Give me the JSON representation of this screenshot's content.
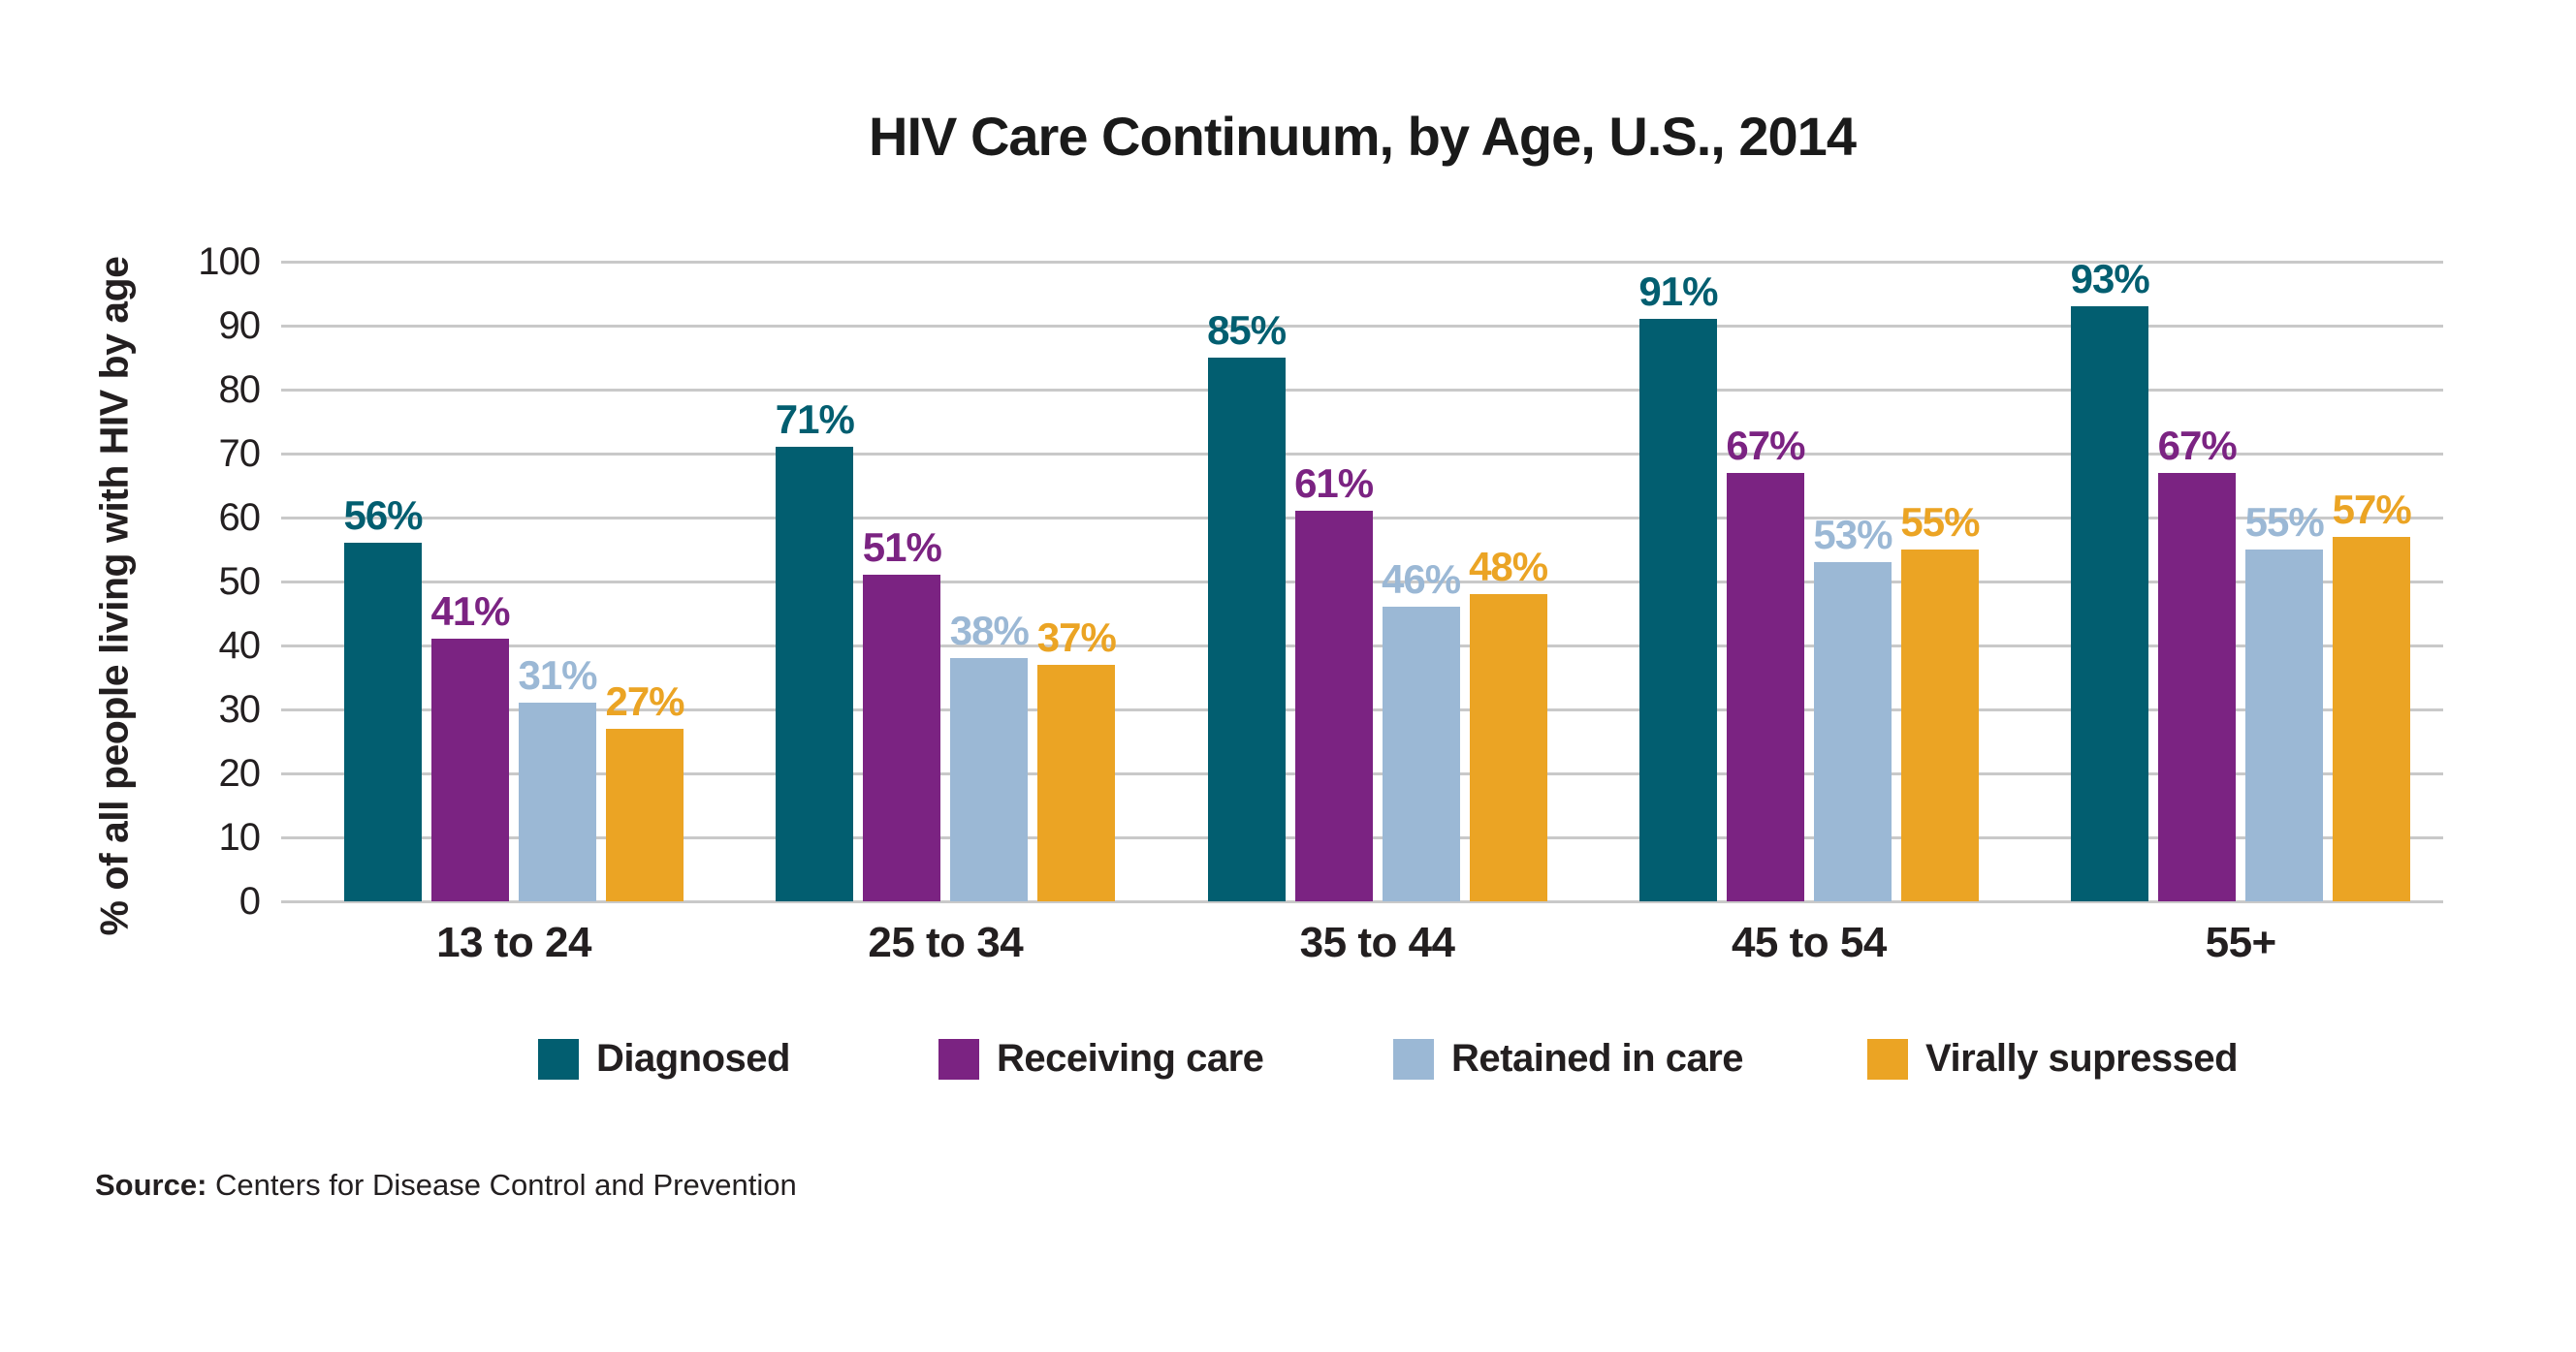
{
  "title": "HIV Care Continuum, by Age, U.S., 2014",
  "y_axis": {
    "label": "% of all people living with HIV by age",
    "ticks": [
      0,
      10,
      20,
      30,
      40,
      50,
      60,
      70,
      80,
      90,
      100
    ]
  },
  "source": {
    "label": "Source:",
    "text": "Centers for Disease Control and Prevention"
  },
  "colors": {
    "grid": "#c9c9c9",
    "text": "#231f20"
  },
  "chart_data": {
    "type": "bar",
    "title": "HIV Care Continuum, by Age, U.S., 2014",
    "categories": [
      "13 to 24",
      "25 to 34",
      "35 to 44",
      "45 to 54",
      "55+"
    ],
    "series": [
      {
        "name": "Diagnosed",
        "color": "#025e70",
        "values": [
          56,
          71,
          85,
          91,
          93
        ]
      },
      {
        "name": "Receiving care",
        "color": "#7b2382",
        "values": [
          41,
          51,
          61,
          67,
          67
        ]
      },
      {
        "name": "Retained in care",
        "color": "#9bb8d5",
        "values": [
          31,
          38,
          46,
          53,
          55
        ]
      },
      {
        "name": "Virally supressed",
        "color": "#eba424",
        "values": [
          27,
          37,
          48,
          55,
          57
        ]
      }
    ],
    "xlabel": "",
    "ylabel": "% of all people living with HIV by age",
    "ylim": [
      0,
      100
    ],
    "ytick_step": 10,
    "grid": true,
    "legend_position": "bottom",
    "value_label_format": "{v}%"
  }
}
